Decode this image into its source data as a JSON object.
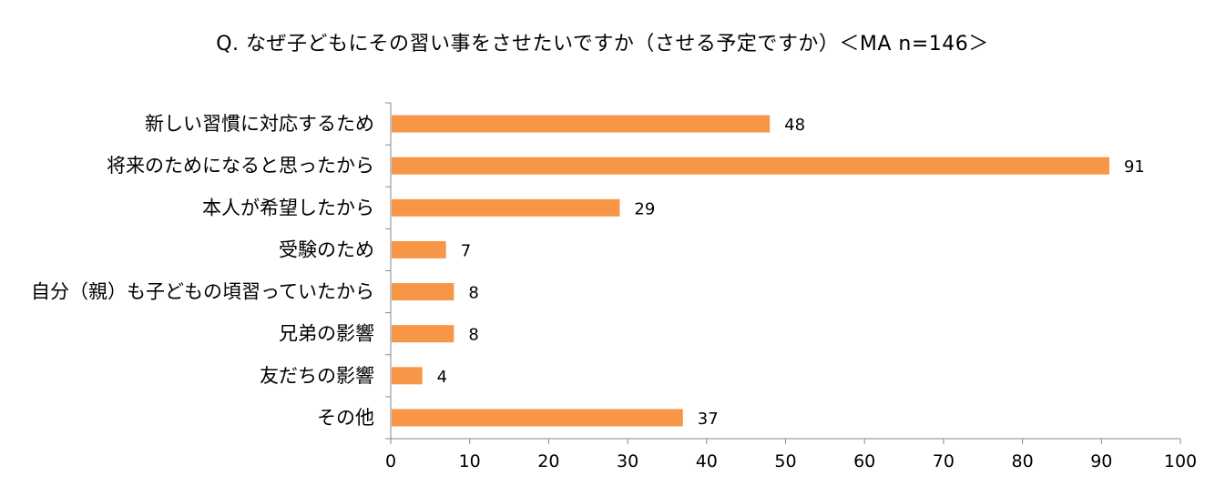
{
  "chart_data": {
    "type": "bar",
    "orientation": "horizontal",
    "title": "Q. なぜ子どもにその習い事をさせたいですか（させる予定ですか）＜MA n=146＞",
    "categories": [
      "新しい習慣に対応するため",
      "将来のためになると思ったから",
      "本人が希望したから",
      "受験のため",
      "自分（親）も子どもの頃習っていたから",
      "兄弟の影響",
      "友だちの影響",
      "その他"
    ],
    "values": [
      48,
      91,
      29,
      7,
      8,
      8,
      4,
      37
    ],
    "xlim": [
      0,
      100
    ],
    "xticks": [
      0,
      10,
      20,
      30,
      40,
      50,
      60,
      70,
      80,
      90,
      100
    ],
    "grid": false,
    "legend": "none",
    "bar_color": "#F79646"
  }
}
